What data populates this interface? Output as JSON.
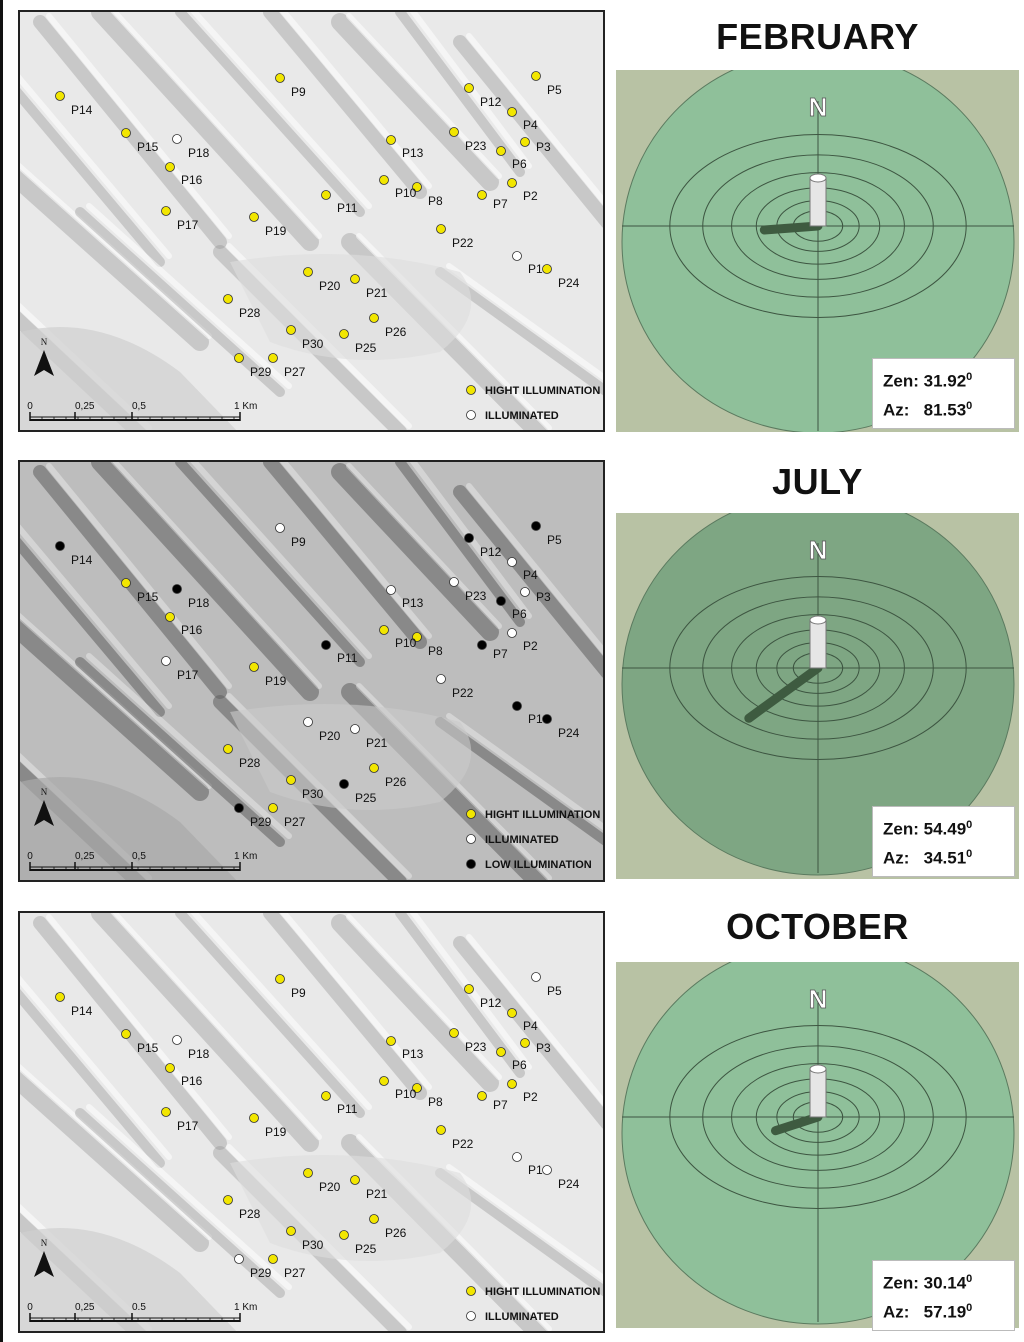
{
  "panels": [
    {
      "month": "FEBRUARY",
      "zen_label": "Zen:",
      "zen_value": "31.92",
      "zen_unit": "0",
      "az_label": "Az:",
      "az_value": "81.53",
      "az_unit": "0",
      "scale_labels": [
        "0",
        "0,25",
        "0,5",
        "1 Km"
      ],
      "legend": [
        {
          "label": "HIGHT ILLUMINATION",
          "color": "#f2e600"
        },
        {
          "label": "ILLUMINATED",
          "color": "#ffffff"
        }
      ],
      "points": {
        "P1": "illuminated",
        "P2": "high",
        "P3": "high",
        "P4": "high",
        "P5": "high",
        "P6": "high",
        "P7": "high",
        "P8": "high",
        "P9": "high",
        "P10": "high",
        "P11": "high",
        "P12": "high",
        "P13": "high",
        "P14": "high",
        "P15": "high",
        "P16": "high",
        "P17": "high",
        "P18": "illuminated",
        "P19": "high",
        "P20": "high",
        "P21": "high",
        "P22": "high",
        "P23": "high",
        "P24": "high",
        "P25": "high",
        "P26": "high",
        "P27": "high",
        "P28": "high",
        "P29": "high",
        "P30": "high"
      }
    },
    {
      "month": "JULY",
      "zen_label": "Zen:",
      "zen_value": "54.49",
      "zen_unit": "0",
      "az_label": "Az:",
      "az_value": "34.51",
      "az_unit": "0",
      "scale_labels": [
        "0",
        "0,25",
        "0,5",
        "1 Km"
      ],
      "legend": [
        {
          "label": "HIGHT ILLUMINATION",
          "color": "#f2e600"
        },
        {
          "label": "ILLUMINATED",
          "color": "#ffffff"
        },
        {
          "label": "LOW ILLUMINATION",
          "color": "#000000"
        }
      ],
      "points": {
        "P1": "low",
        "P2": "illuminated",
        "P3": "illuminated",
        "P4": "illuminated",
        "P5": "low",
        "P6": "low",
        "P7": "low",
        "P8": "high",
        "P9": "illuminated",
        "P10": "high",
        "P11": "low",
        "P12": "low",
        "P13": "illuminated",
        "P14": "low",
        "P15": "high",
        "P16": "high",
        "P17": "illuminated",
        "P18": "low",
        "P19": "high",
        "P20": "illuminated",
        "P21": "illuminated",
        "P22": "illuminated",
        "P23": "illuminated",
        "P24": "low",
        "P25": "low",
        "P26": "high",
        "P27": "high",
        "P28": "high",
        "P29": "low",
        "P30": "high"
      }
    },
    {
      "month": "OCTOBER",
      "zen_label": "Zen:",
      "zen_value": "30.14",
      "zen_unit": "0",
      "az_label": "Az:",
      "az_value": "57.19",
      "az_unit": "0",
      "scale_labels": [
        "0",
        "0,25",
        "0.5",
        "1 Km"
      ],
      "legend": [
        {
          "label": "HIGHT ILLUMINATION",
          "color": "#f2e600"
        },
        {
          "label": "ILLUMINATED",
          "color": "#ffffff"
        }
      ],
      "points": {
        "P1": "illuminated",
        "P2": "high",
        "P3": "high",
        "P4": "high",
        "P5": "illuminated",
        "P6": "high",
        "P7": "high",
        "P8": "high",
        "P9": "high",
        "P10": "high",
        "P11": "high",
        "P12": "high",
        "P13": "high",
        "P14": "high",
        "P15": "high",
        "P16": "high",
        "P17": "high",
        "P18": "illuminated",
        "P19": "high",
        "P20": "high",
        "P21": "high",
        "P22": "high",
        "P23": "high",
        "P24": "illuminated",
        "P25": "high",
        "P26": "high",
        "P27": "high",
        "P28": "high",
        "P29": "illuminated",
        "P30": "high"
      }
    }
  ],
  "north_label": "N",
  "compass_label": "N",
  "status_colors": {
    "high": "#f2e600",
    "illuminated": "#ffffff",
    "low": "#000000"
  },
  "disk_colors": [
    "#8fc09a",
    "#7ea683",
    "#8fc09a"
  ]
}
